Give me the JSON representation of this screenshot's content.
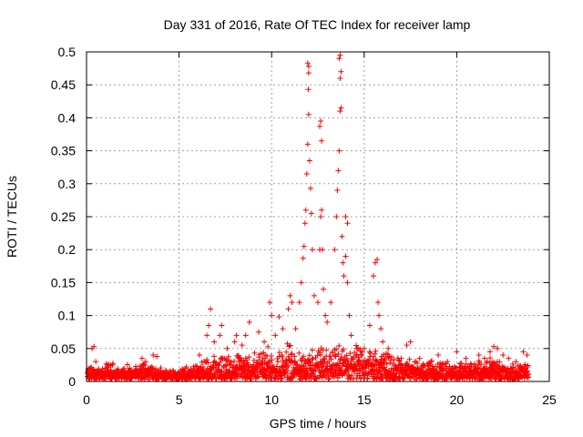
{
  "chart_data": {
    "type": "scatter",
    "title": "Day 331 of 2016, Rate Of TEC Index for receiver lamp",
    "xlabel": "GPS time / hours",
    "ylabel": "ROTI / TECUs",
    "xlim": [
      0,
      25
    ],
    "ylim": [
      0,
      0.5
    ],
    "xticks": [
      "0",
      "5",
      "10",
      "15",
      "20",
      "25"
    ],
    "yticks": [
      "0",
      "0.05",
      "0.1",
      "0.15",
      "0.2",
      "0.25",
      "0.3",
      "0.35",
      "0.4",
      "0.45",
      "0.5"
    ],
    "grid": true,
    "marker": "+",
    "series": [
      {
        "name": "ROTI",
        "color": "#ff0000",
        "points": [
          [
            0.1,
            0.02
          ],
          [
            0.2,
            0.012
          ],
          [
            0.3,
            0.05
          ],
          [
            0.4,
            0.053
          ],
          [
            0.5,
            0.03
          ],
          [
            1.0,
            0.02
          ],
          [
            1.4,
            0.025
          ],
          [
            3.0,
            0.035
          ],
          [
            3.2,
            0.03
          ],
          [
            3.6,
            0.04
          ],
          [
            3.8,
            0.038
          ],
          [
            4.3,
            0.015
          ],
          [
            5.4,
            0.022
          ],
          [
            6.1,
            0.04
          ],
          [
            6.5,
            0.07
          ],
          [
            6.6,
            0.085
          ],
          [
            6.7,
            0.11
          ],
          [
            6.9,
            0.06
          ],
          [
            7.2,
            0.07
          ],
          [
            7.3,
            0.085
          ],
          [
            7.6,
            0.05
          ],
          [
            8.0,
            0.06
          ],
          [
            8.1,
            0.07
          ],
          [
            8.4,
            0.055
          ],
          [
            8.6,
            0.07
          ],
          [
            8.8,
            0.09
          ],
          [
            9.3,
            0.075
          ],
          [
            9.6,
            0.06
          ],
          [
            9.9,
            0.12
          ],
          [
            10.0,
            0.1
          ],
          [
            10.2,
            0.07
          ],
          [
            10.4,
            0.098
          ],
          [
            10.6,
            0.08
          ],
          [
            10.9,
            0.11
          ],
          [
            11.0,
            0.13
          ],
          [
            11.1,
            0.12
          ],
          [
            11.3,
            0.08
          ],
          [
            11.5,
            0.12
          ],
          [
            11.6,
            0.15
          ],
          [
            11.7,
            0.187
          ],
          [
            11.75,
            0.205
          ],
          [
            11.8,
            0.24
          ],
          [
            11.85,
            0.26
          ],
          [
            11.9,
            0.315
          ],
          [
            11.95,
            0.36
          ],
          [
            12.0,
            0.405
          ],
          [
            11.98,
            0.443
          ],
          [
            12.0,
            0.468
          ],
          [
            11.95,
            0.483
          ],
          [
            12.0,
            0.478
          ],
          [
            12.05,
            0.335
          ],
          [
            12.1,
            0.293
          ],
          [
            12.15,
            0.255
          ],
          [
            12.2,
            0.2
          ],
          [
            12.3,
            0.13
          ],
          [
            12.5,
            0.12
          ],
          [
            12.6,
            0.2
          ],
          [
            12.65,
            0.25
          ],
          [
            12.7,
            0.26
          ],
          [
            12.6,
            0.387
          ],
          [
            12.65,
            0.395
          ],
          [
            12.7,
            0.365
          ],
          [
            12.75,
            0.2
          ],
          [
            12.8,
            0.14
          ],
          [
            12.9,
            0.1
          ],
          [
            13.0,
            0.09
          ],
          [
            13.2,
            0.12
          ],
          [
            13.4,
            0.2
          ],
          [
            13.5,
            0.25
          ],
          [
            13.55,
            0.29
          ],
          [
            13.6,
            0.32
          ],
          [
            13.65,
            0.35
          ],
          [
            13.7,
            0.41
          ],
          [
            13.75,
            0.415
          ],
          [
            13.7,
            0.46
          ],
          [
            13.75,
            0.47
          ],
          [
            13.7,
            0.495
          ],
          [
            13.65,
            0.49
          ],
          [
            13.8,
            0.22
          ],
          [
            13.85,
            0.18
          ],
          [
            13.9,
            0.16
          ],
          [
            14.0,
            0.25
          ],
          [
            14.1,
            0.24
          ],
          [
            14.0,
            0.19
          ],
          [
            14.1,
            0.15
          ],
          [
            14.2,
            0.1
          ],
          [
            14.3,
            0.07
          ],
          [
            14.6,
            0.05
          ],
          [
            15.0,
            0.05
          ],
          [
            15.3,
            0.085
          ],
          [
            15.5,
            0.16
          ],
          [
            15.6,
            0.18
          ],
          [
            15.7,
            0.185
          ],
          [
            15.75,
            0.12
          ],
          [
            15.8,
            0.1
          ],
          [
            15.9,
            0.08
          ],
          [
            16.0,
            0.06
          ],
          [
            16.3,
            0.05
          ],
          [
            17.0,
            0.035
          ],
          [
            17.3,
            0.055
          ],
          [
            17.5,
            0.06
          ],
          [
            17.8,
            0.03
          ],
          [
            18.0,
            0.035
          ],
          [
            18.6,
            0.03
          ],
          [
            19.0,
            0.04
          ],
          [
            19.5,
            0.03
          ],
          [
            20.0,
            0.045
          ],
          [
            20.5,
            0.035
          ],
          [
            20.8,
            0.025
          ],
          [
            21.2,
            0.04
          ],
          [
            21.5,
            0.035
          ],
          [
            21.8,
            0.045
          ],
          [
            22.0,
            0.053
          ],
          [
            22.2,
            0.05
          ],
          [
            22.5,
            0.04
          ],
          [
            22.8,
            0.035
          ],
          [
            23.2,
            0.03
          ],
          [
            23.6,
            0.045
          ],
          [
            23.8,
            0.04
          ]
        ],
        "baseline_band": [
          [
            0,
            0.015
          ],
          [
            1,
            0.02
          ],
          [
            2,
            0.018
          ],
          [
            3,
            0.02
          ],
          [
            4,
            0.014
          ],
          [
            5,
            0.012
          ],
          [
            6,
            0.022
          ],
          [
            7,
            0.03
          ],
          [
            8,
            0.032
          ],
          [
            9,
            0.035
          ],
          [
            10,
            0.04
          ],
          [
            11,
            0.045
          ],
          [
            12,
            0.035
          ],
          [
            13,
            0.045
          ],
          [
            14,
            0.04
          ],
          [
            15,
            0.04
          ],
          [
            16,
            0.035
          ],
          [
            17,
            0.028
          ],
          [
            18,
            0.022
          ],
          [
            19,
            0.022
          ],
          [
            20,
            0.022
          ],
          [
            21,
            0.022
          ],
          [
            22,
            0.028
          ],
          [
            23,
            0.02
          ],
          [
            23.9,
            0.02
          ]
        ]
      }
    ]
  }
}
